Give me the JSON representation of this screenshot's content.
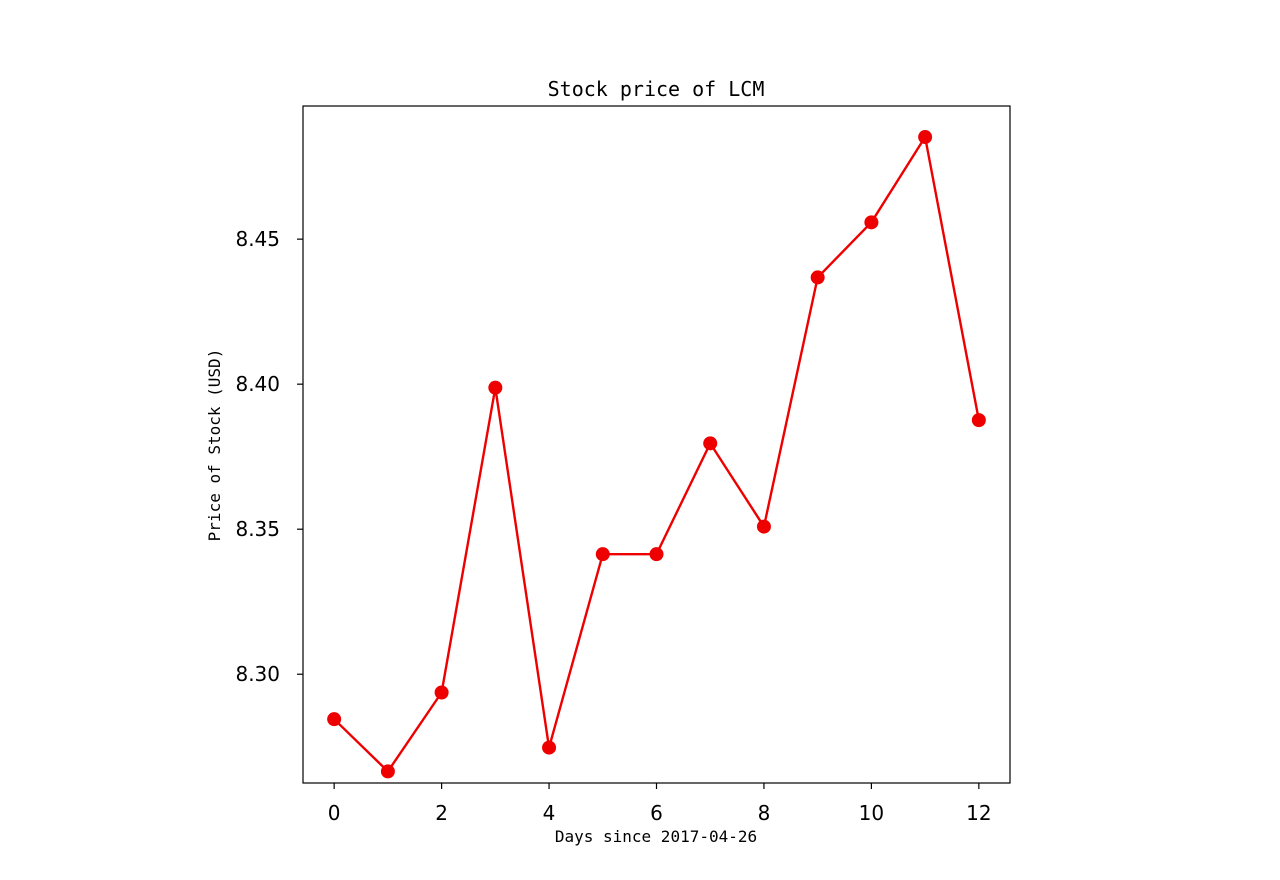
{
  "chart_data": {
    "type": "line",
    "title": "Stock price of LCM",
    "xlabel": "Days since 2017-04-26",
    "ylabel": "Price of Stock (USD)",
    "x": [
      0,
      1,
      2,
      3,
      4,
      5,
      6,
      7,
      8,
      9,
      10,
      11,
      12
    ],
    "series": [
      {
        "values": [
          8.2845,
          8.2665,
          8.2937,
          8.3988,
          8.2747,
          8.3414,
          8.3414,
          8.3796,
          8.3509,
          8.4368,
          8.4558,
          8.4852,
          8.3876
        ],
        "color": "#ee0000",
        "marker": "circle"
      }
    ],
    "xlim": [
      -0.58,
      12.58
    ],
    "ylim": [
      8.2625,
      8.4959
    ],
    "xticks": [
      0,
      2,
      4,
      6,
      8,
      10,
      12
    ],
    "yticks": [
      8.3,
      8.35,
      8.4,
      8.45
    ],
    "xtick_labels": [
      "0",
      "2",
      "4",
      "6",
      "8",
      "10",
      "12"
    ],
    "ytick_labels": [
      "8.30",
      "8.35",
      "8.40",
      "8.45"
    ],
    "grid": false,
    "legend": "none"
  }
}
